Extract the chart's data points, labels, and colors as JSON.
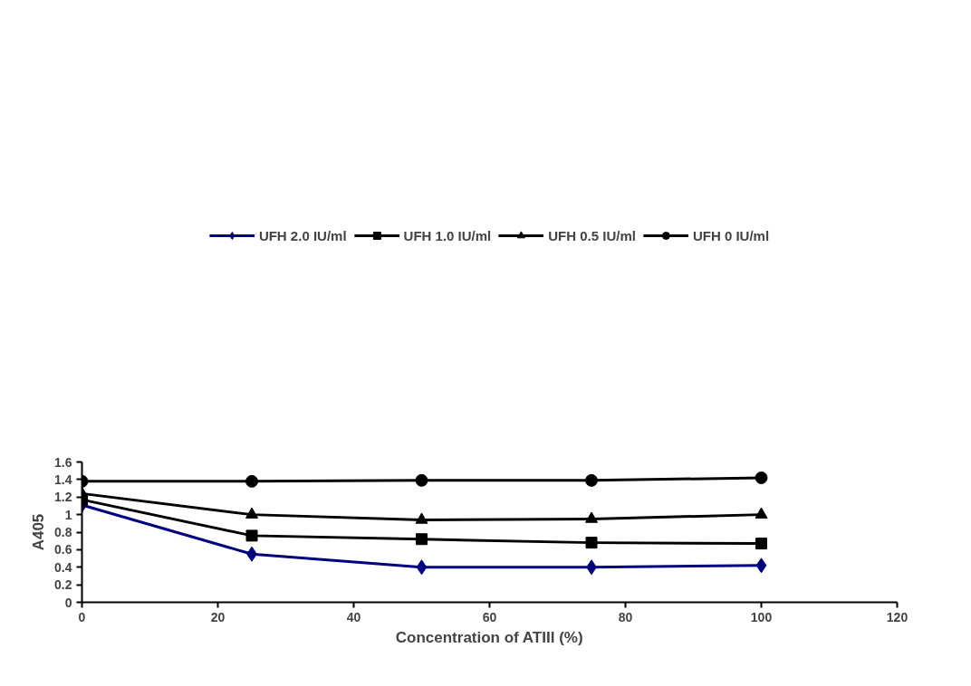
{
  "chart_data": {
    "type": "line",
    "xlabel": "Concentration of ATIII (%)",
    "ylabel": "A405",
    "x": [
      0,
      25,
      50,
      75,
      100
    ],
    "series": [
      {
        "name": "UFH 2.0 IU/ml",
        "color": "#000080",
        "marker": "diamond",
        "values": [
          1.11,
          0.55,
          0.4,
          0.4,
          0.42
        ]
      },
      {
        "name": "UFH 1.0 IU/ml",
        "color": "#000000",
        "marker": "square",
        "values": [
          1.17,
          0.76,
          0.72,
          0.68,
          0.67
        ]
      },
      {
        "name": "UFH 0.5 IU/ml",
        "color": "#000000",
        "marker": "triangle",
        "values": [
          1.24,
          1.0,
          0.94,
          0.95,
          1.0
        ]
      },
      {
        "name": "UFH 0 IU/ml",
        "color": "#000000",
        "marker": "circle",
        "values": [
          1.38,
          1.38,
          1.39,
          1.39,
          1.42
        ]
      }
    ],
    "xlim": [
      0,
      120
    ],
    "xticks": [
      0,
      20,
      40,
      60,
      80,
      100,
      120
    ],
    "ylim": [
      0,
      1.6
    ],
    "yticks": [
      0,
      0.2,
      0.4,
      0.6,
      0.8,
      1,
      1.2,
      1.4,
      1.6
    ],
    "grid": false,
    "legend": "top",
    "line_style": "solid"
  }
}
